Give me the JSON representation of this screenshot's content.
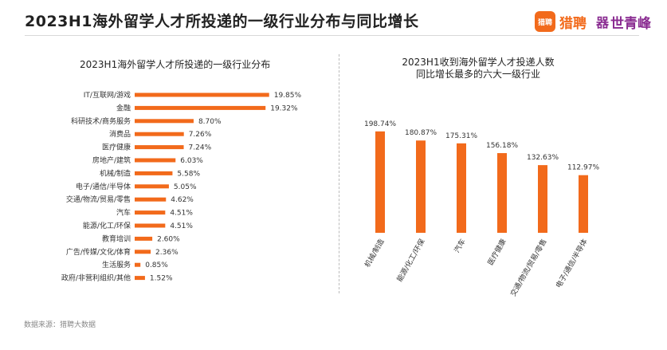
{
  "header": {
    "title": "2023H1海外留学人才所投递的一级行业分布与同比增长",
    "brand_logo_text": "猎聘",
    "brand_name": "猎聘",
    "brand2_icon": "器",
    "brand2_name": "世青峰"
  },
  "source": "数据来源：猎聘大数据",
  "chart_data": [
    {
      "type": "bar",
      "orientation": "horizontal",
      "title": "2023H1海外留学人才所投递的一级行业分布",
      "categories": [
        "IT/互联网/游戏",
        "金融",
        "科研技术/商务服务",
        "消费品",
        "医疗健康",
        "房地产/建筑",
        "机械/制造",
        "电子/通信/半导体",
        "交通/物流/贸易/零售",
        "汽车",
        "能源/化工/环保",
        "教育培训",
        "广告/传媒/文化/体育",
        "生活服务",
        "政府/非营利组织/其他"
      ],
      "values": [
        19.85,
        19.32,
        8.7,
        7.26,
        7.24,
        6.03,
        5.58,
        5.05,
        4.62,
        4.51,
        4.51,
        2.6,
        2.36,
        0.85,
        1.52
      ],
      "value_labels": [
        "19.85%",
        "19.32%",
        "8.70%",
        "7.26%",
        "7.24%",
        "6.03%",
        "5.58%",
        "5.05%",
        "4.62%",
        "4.51%",
        "4.51%",
        "2.60%",
        "2.36%",
        "0.85%",
        "1.52%"
      ],
      "xlim": [
        0,
        20
      ],
      "unit": "%",
      "grid": false,
      "color": "#f26a1b"
    },
    {
      "type": "bar",
      "orientation": "vertical",
      "title": "2023H1收到海外留学人才投递人数\n同比增长最多的六大一级行业",
      "categories": [
        "机械/制造",
        "能源/化工/环保",
        "汽车",
        "医疗健康",
        "交通/物流/贸易/零售",
        "电子/通信/半导体"
      ],
      "values": [
        198.74,
        180.87,
        175.31,
        156.18,
        132.63,
        112.97
      ],
      "value_labels": [
        "198.74%",
        "180.87%",
        "175.31%",
        "156.18%",
        "132.63%",
        "112.97%"
      ],
      "ylim": [
        0,
        200
      ],
      "unit": "%",
      "grid": false,
      "color": "#f26a1b"
    }
  ]
}
